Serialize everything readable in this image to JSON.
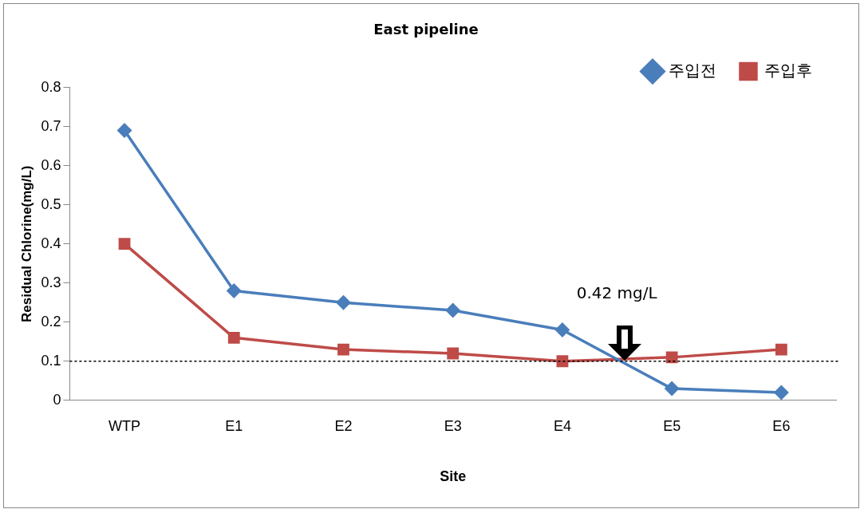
{
  "chart_data": {
    "type": "line",
    "title": "East pipeline",
    "xlabel": "Site",
    "ylabel": "Residual Chlorine(mg/L)",
    "categories": [
      "WTP",
      "E1",
      "E2",
      "E3",
      "E4",
      "E5",
      "E6"
    ],
    "series": [
      {
        "name": "주입전",
        "color": "#4a7ebb",
        "marker": "diamond",
        "values": [
          0.69,
          0.28,
          0.25,
          0.23,
          0.18,
          0.03,
          0.02
        ]
      },
      {
        "name": "주입후",
        "color": "#be4b48",
        "marker": "square",
        "values": [
          0.4,
          0.16,
          0.13,
          0.12,
          0.1,
          0.11,
          0.13
        ]
      }
    ],
    "ylim": [
      0,
      0.8
    ],
    "yticks": [
      0,
      0.1,
      0.2,
      0.3,
      0.4,
      0.5,
      0.6,
      0.7,
      0.8
    ],
    "ref_lines": [
      {
        "axis": "y",
        "value": 0.1,
        "label": null,
        "color": "#000000",
        "line_style": "dotted"
      }
    ],
    "annotations": [
      "0.42 mg/L"
    ],
    "grid": false,
    "legend": "top right",
    "line_style": "solid"
  }
}
